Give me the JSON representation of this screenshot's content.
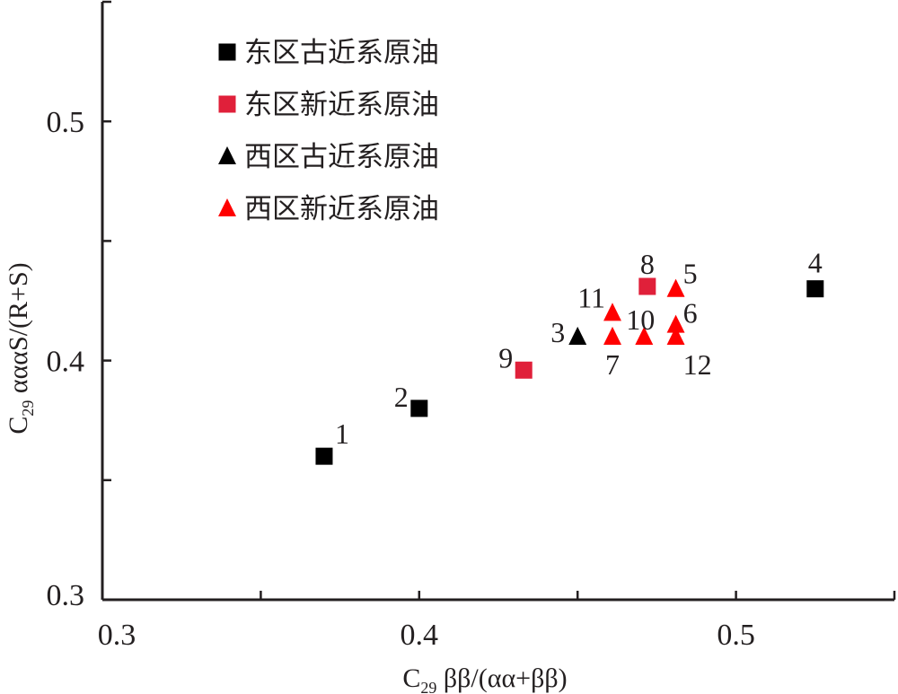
{
  "chart_data": {
    "type": "scatter",
    "xlim": [
      0.3,
      0.55
    ],
    "ylim": [
      0.3,
      0.55
    ],
    "x_ticks": [
      0.3,
      0.4,
      0.5
    ],
    "y_ticks": [
      0.3,
      0.4,
      0.5
    ],
    "x_tick_labels": [
      "0.3",
      "0.4",
      "0.5"
    ],
    "y_tick_labels": [
      "0.3",
      "0.4",
      "0.5"
    ],
    "xlabel": {
      "prefix": "C",
      "sub": "29",
      "rest": "ββ/(αα+ββ)"
    },
    "ylabel": {
      "prefix": "C",
      "sub": "29",
      "rest": "αααS/(R+S)"
    },
    "grid": false,
    "legend_position": "top-left",
    "series": [
      {
        "name": "东区古近系原油",
        "marker": "square",
        "color": "#000000",
        "points": [
          {
            "label": "1",
            "x": 0.37,
            "y": 0.36
          },
          {
            "label": "2",
            "x": 0.4,
            "y": 0.38
          },
          {
            "label": "4",
            "x": 0.525,
            "y": 0.43
          }
        ]
      },
      {
        "name": "东区新近系原油",
        "marker": "square",
        "color": "#e0203a",
        "points": [
          {
            "label": "8",
            "x": 0.472,
            "y": 0.431
          },
          {
            "label": "9",
            "x": 0.433,
            "y": 0.396
          }
        ]
      },
      {
        "name": "西区古近系原油",
        "marker": "triangle",
        "color": "#000000",
        "points": [
          {
            "label": "3",
            "x": 0.45,
            "y": 0.41
          }
        ]
      },
      {
        "name": "西区新近系原油",
        "marker": "triangle",
        "color": "#ff0000",
        "points": [
          {
            "label": "5",
            "x": 0.481,
            "y": 0.43
          },
          {
            "label": "6",
            "x": 0.481,
            "y": 0.415
          },
          {
            "label": "7",
            "x": 0.461,
            "y": 0.41
          },
          {
            "label": "10",
            "x": 0.471,
            "y": 0.41
          },
          {
            "label": "11",
            "x": 0.461,
            "y": 0.42
          },
          {
            "label": "12",
            "x": 0.481,
            "y": 0.41
          }
        ]
      }
    ]
  }
}
